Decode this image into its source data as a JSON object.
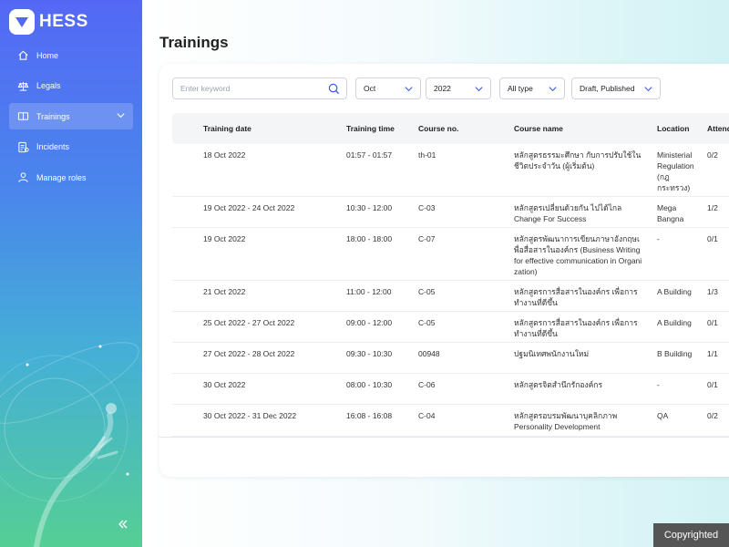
{
  "app": {
    "name": "HESS"
  },
  "sidebar": {
    "items": [
      {
        "label": "Home",
        "icon": "home-icon"
      },
      {
        "label": "Legals",
        "icon": "scale-icon"
      },
      {
        "label": "Trainings",
        "icon": "book-icon",
        "active": true
      },
      {
        "label": "Incidents",
        "icon": "report-icon"
      },
      {
        "label": "Manage roles",
        "icon": "user-icon"
      }
    ]
  },
  "page": {
    "title": "Trainings"
  },
  "filters": {
    "search_placeholder": "Enter keyword",
    "month": "Oct",
    "year": "2022",
    "type": "All type",
    "status": "Draft, Published"
  },
  "table": {
    "columns": [
      "Training date",
      "Training time",
      "Course no.",
      "Course name",
      "Location",
      "Attend"
    ],
    "rows": [
      {
        "date": "18 Oct 2022",
        "time": "01:57 - 01:57",
        "course_no": "th-01",
        "course_name": "หลักสูตรธรรมะศึกษา กับการปรับใช้ในชีวิตประจำวัน (ผู้เริ่มต้น)",
        "location": "Ministerial Regulation (กฎกระทรวง)",
        "attend": "0/2"
      },
      {
        "date": "19 Oct 2022 - 24 Oct 2022",
        "time": "10:30 - 12:00",
        "course_no": "C-03",
        "course_name": "หลักสูตรเปลี่ยนด้วยกัน ไปได้ไกล Change For Success",
        "location": "Mega Bangna",
        "attend": "1/2"
      },
      {
        "date": "19 Oct 2022",
        "time": "18:00 - 18:00",
        "course_no": "C-07",
        "course_name": "หลักสูตรพัฒนาการเขียนภาษาอังกฤษเพื่อสื่อสารในองค์กร (Business Writing for effective communication in Organization)",
        "location": "-",
        "attend": "0/1"
      },
      {
        "date": "21 Oct 2022",
        "time": "11:00 - 12:00",
        "course_no": "C-05",
        "course_name": "หลักสูตรการสื่อสารในองค์กร เพื่อการทำงานที่ดีขึ้น",
        "location": "A Building",
        "attend": "1/3"
      },
      {
        "date": "25 Oct 2022 - 27 Oct 2022",
        "time": "09:00 - 12:00",
        "course_no": "C-05",
        "course_name": "หลักสูตรการสื่อสารในองค์กร เพื่อการทำงานที่ดีขึ้น",
        "location": "A Building",
        "attend": "0/1"
      },
      {
        "date": "27 Oct 2022 - 28 Oct 2022",
        "time": "09:30 - 10:30",
        "course_no": "00948",
        "course_name": "ปฐมนิเทศพนักงานใหม่",
        "location": "B Building",
        "attend": "1/1"
      },
      {
        "date": "30 Oct 2022",
        "time": "08:00 - 10:30",
        "course_no": "C-06",
        "course_name": "หลักสูตรจิตสำนึกรักองค์กร",
        "location": "-",
        "attend": "0/1"
      },
      {
        "date": "30 Oct 2022 - 31 Dec 2022",
        "time": "16:08 - 16:08",
        "course_no": "C-04",
        "course_name": "หลักสูตรอบรมพัฒนาบุคลิกภาพ Personality Development",
        "location": "QA",
        "attend": "0/2"
      }
    ]
  },
  "footer": {
    "copyright": "Copyrighted"
  }
}
